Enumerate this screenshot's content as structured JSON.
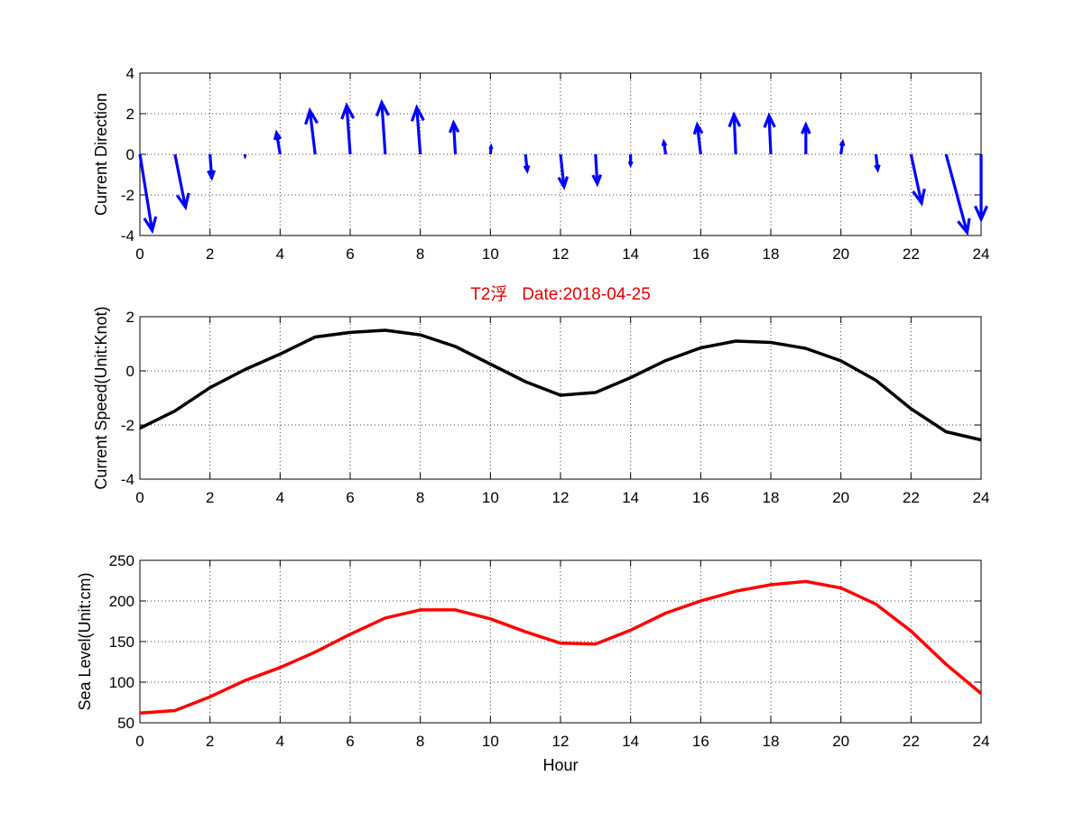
{
  "chart_data": [
    {
      "type": "quiver",
      "ylabel": "Current Direction",
      "xlim": [
        0,
        24
      ],
      "ylim": [
        -4,
        4
      ],
      "xticks": [
        0,
        2,
        4,
        6,
        8,
        10,
        12,
        14,
        16,
        18,
        20,
        22,
        24
      ],
      "yticks": [
        -4,
        -2,
        0,
        2,
        4
      ],
      "grid": true,
      "color": "#0000ff",
      "x": [
        0,
        1,
        2,
        3,
        4,
        5,
        6,
        7,
        8,
        9,
        10,
        11,
        12,
        13,
        14,
        15,
        16,
        17,
        18,
        19,
        20,
        21,
        22,
        23,
        24
      ],
      "u": [
        0.35,
        0.3,
        0.05,
        0.0,
        -0.1,
        -0.15,
        -0.1,
        -0.1,
        -0.1,
        -0.05,
        0.02,
        0.05,
        0.1,
        0.05,
        0.0,
        -0.05,
        -0.1,
        -0.05,
        -0.05,
        0.0,
        0.05,
        0.05,
        0.3,
        0.6,
        0.0
      ],
      "v": [
        -3.75,
        -2.6,
        -1.15,
        -0.08,
        1.05,
        2.15,
        2.4,
        2.55,
        2.3,
        1.55,
        0.37,
        -0.8,
        -1.6,
        -1.45,
        -0.5,
        0.6,
        1.45,
        1.95,
        1.9,
        1.45,
        0.6,
        -0.75,
        -2.4,
        -3.85,
        -3.2
      ]
    },
    {
      "type": "line",
      "title": "T2浮   Date:2018-04-25",
      "ylabel": "Current Speed(Unit:Knot)",
      "xlim": [
        0,
        24
      ],
      "ylim": [
        -4,
        2
      ],
      "xticks": [
        0,
        2,
        4,
        6,
        8,
        10,
        12,
        14,
        16,
        18,
        20,
        22,
        24
      ],
      "yticks": [
        -4,
        -2,
        0,
        2
      ],
      "grid": true,
      "color": "#000000",
      "x": [
        0,
        1,
        2,
        3,
        4,
        5,
        6,
        7,
        8,
        9,
        10,
        11,
        12,
        13,
        14,
        15,
        16,
        17,
        18,
        19,
        20,
        21,
        22,
        23,
        24
      ],
      "y": [
        -2.12,
        -1.48,
        -0.62,
        0.05,
        0.62,
        1.25,
        1.42,
        1.5,
        1.33,
        0.9,
        0.25,
        -0.4,
        -0.9,
        -0.8,
        -0.25,
        0.38,
        0.85,
        1.1,
        1.05,
        0.83,
        0.37,
        -0.35,
        -1.4,
        -2.25,
        -2.55
      ]
    },
    {
      "type": "line",
      "ylabel": "Sea Level(Unit:cm)",
      "xlabel": "Hour",
      "xlim": [
        0,
        24
      ],
      "ylim": [
        50,
        250
      ],
      "xticks": [
        0,
        2,
        4,
        6,
        8,
        10,
        12,
        14,
        16,
        18,
        20,
        22,
        24
      ],
      "yticks": [
        50,
        100,
        150,
        200,
        250
      ],
      "grid": true,
      "color": "#ff0000",
      "x": [
        0,
        1,
        2,
        3,
        4,
        5,
        6,
        7,
        8,
        9,
        10,
        11,
        12,
        13,
        14,
        15,
        16,
        17,
        18,
        19,
        20,
        21,
        22,
        23,
        24
      ],
      "y": [
        62,
        65,
        82,
        102,
        118,
        137,
        159,
        179,
        189,
        189,
        178,
        162,
        148,
        147,
        164,
        185,
        200,
        212,
        220,
        224,
        216,
        196,
        163,
        122,
        86
      ]
    }
  ]
}
